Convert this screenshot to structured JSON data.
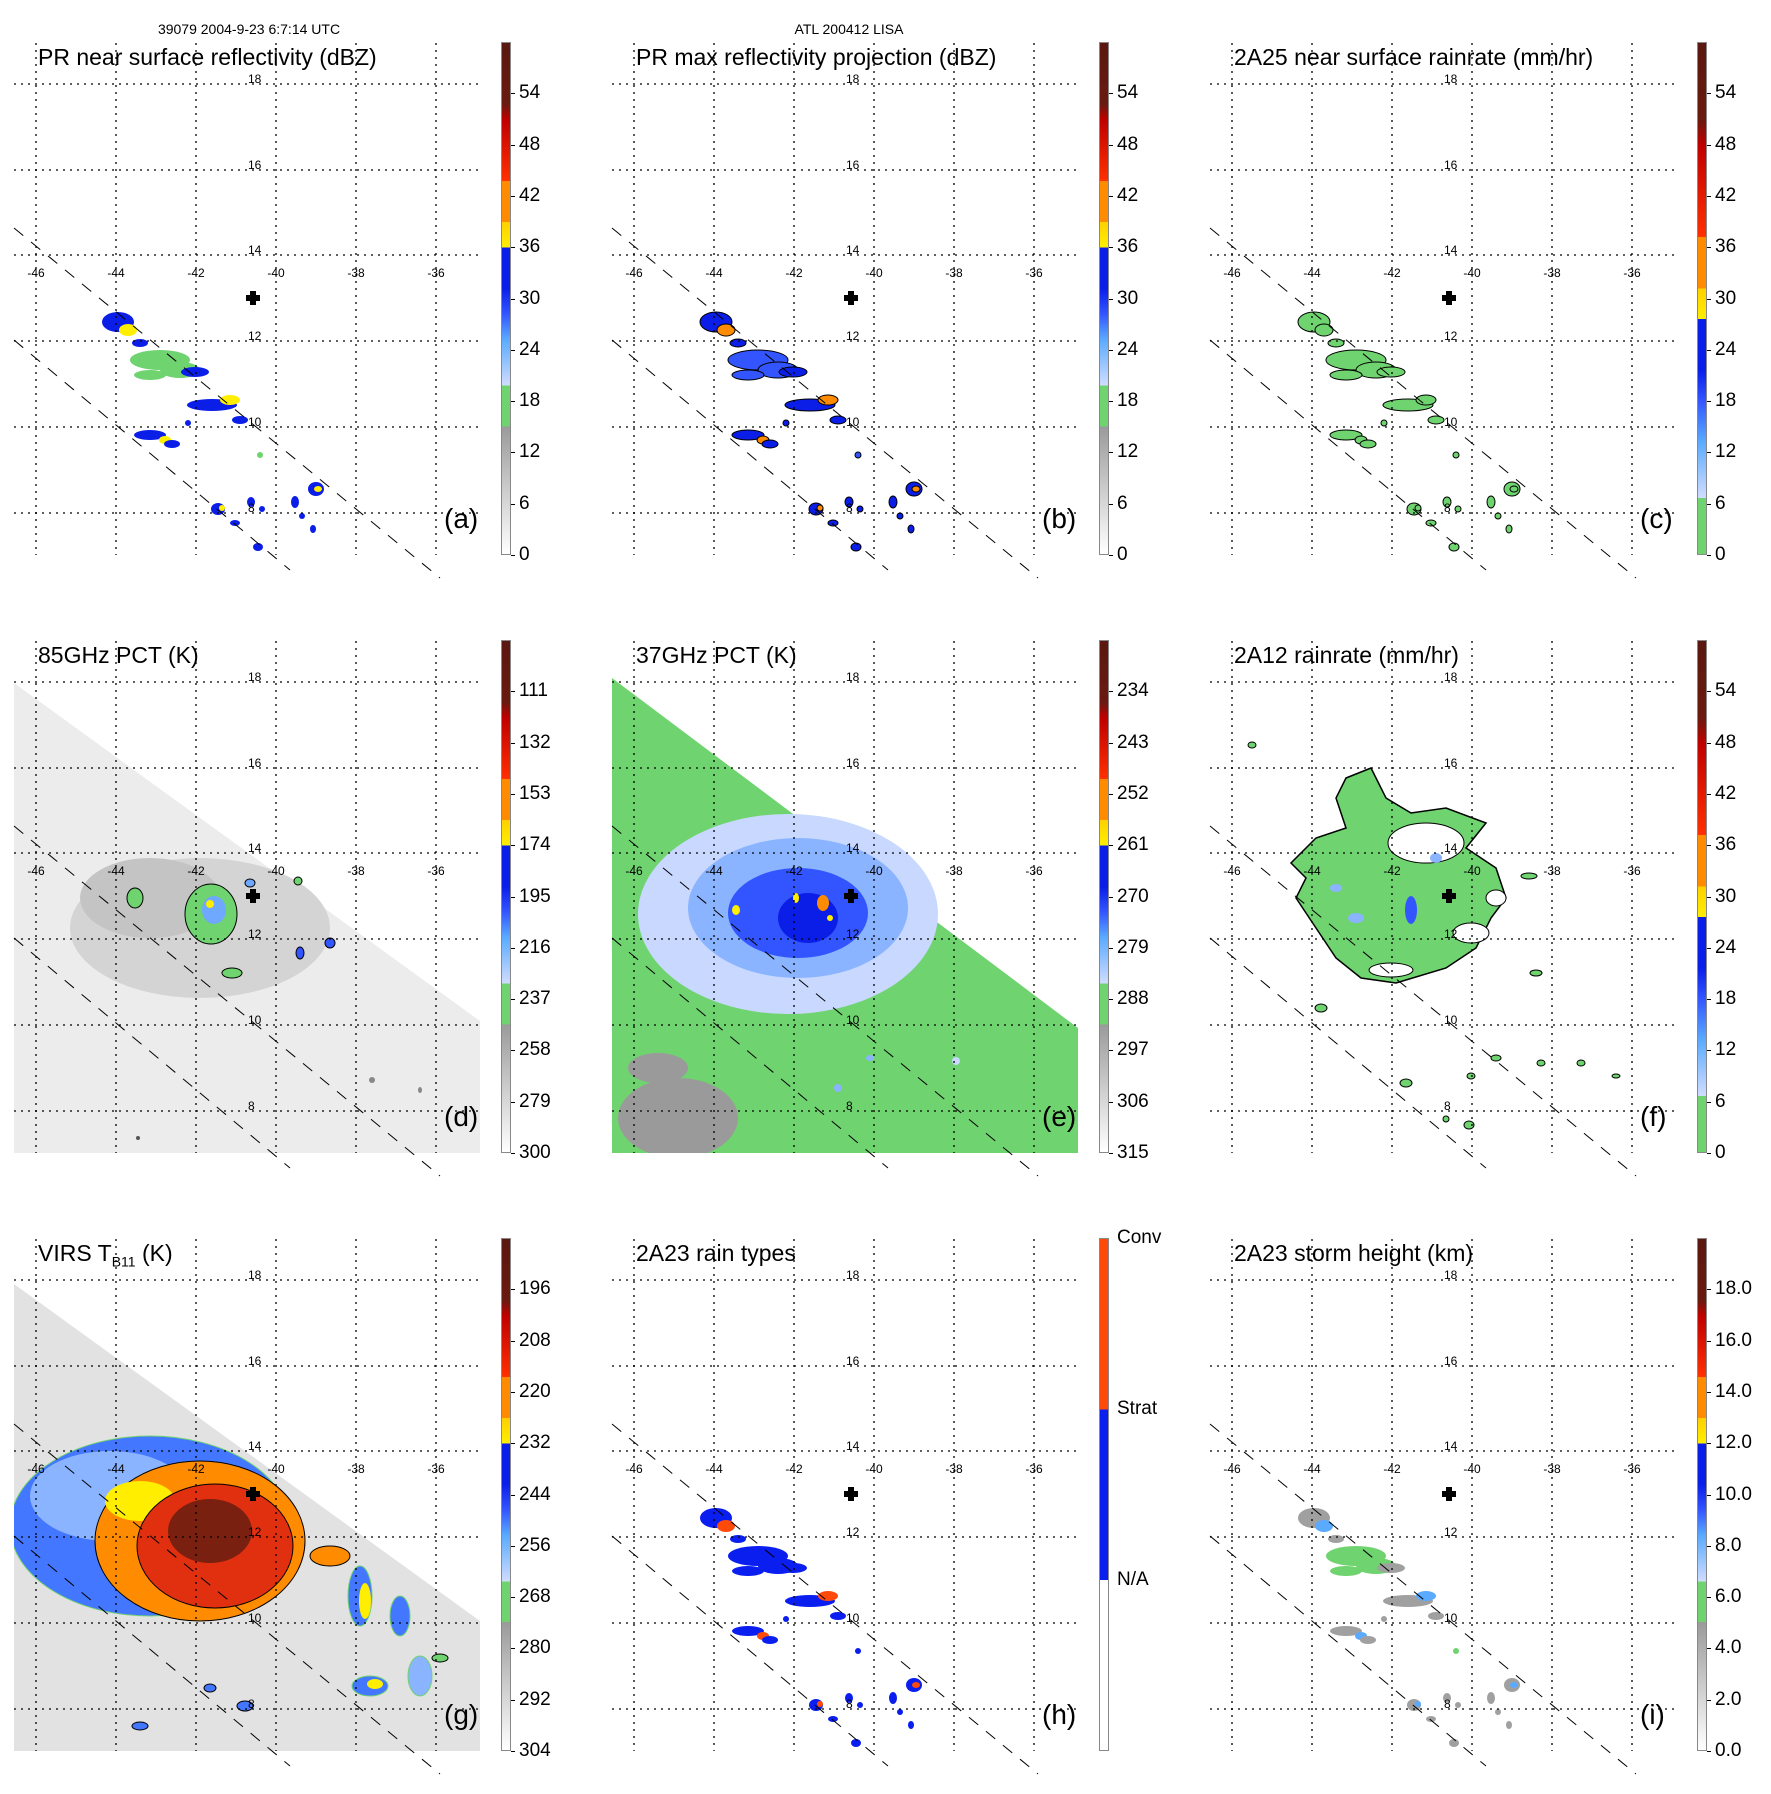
{
  "header": {
    "left": "39079 2004-9-23 6:7:14 UTC",
    "center": "ATL 200412 LISA"
  },
  "lon_labels": [
    "-46",
    "-44",
    "-42",
    "-40",
    "-38",
    "-36"
  ],
  "lat_labels": [
    "18",
    "16",
    "14",
    "12",
    "10",
    "8"
  ],
  "panels": [
    {
      "title": "PR near surface reflectivity (dBZ)",
      "letter": "(a)",
      "cmap": "std",
      "ticks": [
        "54",
        "48",
        "42",
        "36",
        "30",
        "24",
        "18",
        "12",
        "6",
        "0"
      ]
    },
    {
      "title": "PR max reflectivity projection (dBZ)",
      "letter": "(b)",
      "cmap": "std",
      "ticks": [
        "54",
        "48",
        "42",
        "36",
        "30",
        "24",
        "18",
        "12",
        "6",
        "0"
      ]
    },
    {
      "title": "2A25 near surface rainrate (mm/hr)",
      "letter": "(c)",
      "cmap": "rain",
      "ticks": [
        "54",
        "48",
        "42",
        "36",
        "30",
        "24",
        "18",
        "12",
        "6",
        "0"
      ]
    },
    {
      "title": "85GHz PCT (K)",
      "letter": "(d)",
      "cmap": "std",
      "ticks": [
        "111",
        "132",
        "153",
        "174",
        "195",
        "216",
        "237",
        "258",
        "279",
        "300"
      ]
    },
    {
      "title": "37GHz PCT (K)",
      "letter": "(e)",
      "cmap": "std",
      "ticks": [
        "234",
        "243",
        "252",
        "261",
        "270",
        "279",
        "288",
        "297",
        "306",
        "315"
      ]
    },
    {
      "title": "2A12 rainrate (mm/hr)",
      "letter": "(f)",
      "cmap": "rain",
      "ticks": [
        "54",
        "48",
        "42",
        "36",
        "30",
        "24",
        "18",
        "12",
        "6",
        "0"
      ]
    },
    {
      "title_parts": [
        "VIRS T",
        "B11",
        " (K)"
      ],
      "letter": "(g)",
      "cmap": "std",
      "ticks": [
        "196",
        "208",
        "220",
        "232",
        "244",
        "256",
        "268",
        "280",
        "292",
        "304"
      ]
    },
    {
      "title": "2A23 rain types",
      "letter": "(h)",
      "cmap": "types",
      "ticks": [],
      "type_labels": [
        "Conv",
        "Strat",
        "N/A"
      ]
    },
    {
      "title": "2A23 storm height (km)",
      "letter": "(i)",
      "cmap": "std",
      "ticks": [
        "18.0",
        "16.0",
        "14.0",
        "12.0",
        "10.0",
        "8.0",
        "6.0",
        "4.0",
        "2.0",
        "0.0"
      ]
    }
  ],
  "colors": {
    "green": "#6fd36f",
    "lightblue": "#9cc4ff",
    "blue": "#0a1ee8",
    "yellow": "#ffee00",
    "orange": "#ff8c00",
    "red": "#e01000",
    "darkred": "#5a1810",
    "conv": "#ff4a0a",
    "strat": "#0a1ef0",
    "gray": "#a0a0a0"
  }
}
